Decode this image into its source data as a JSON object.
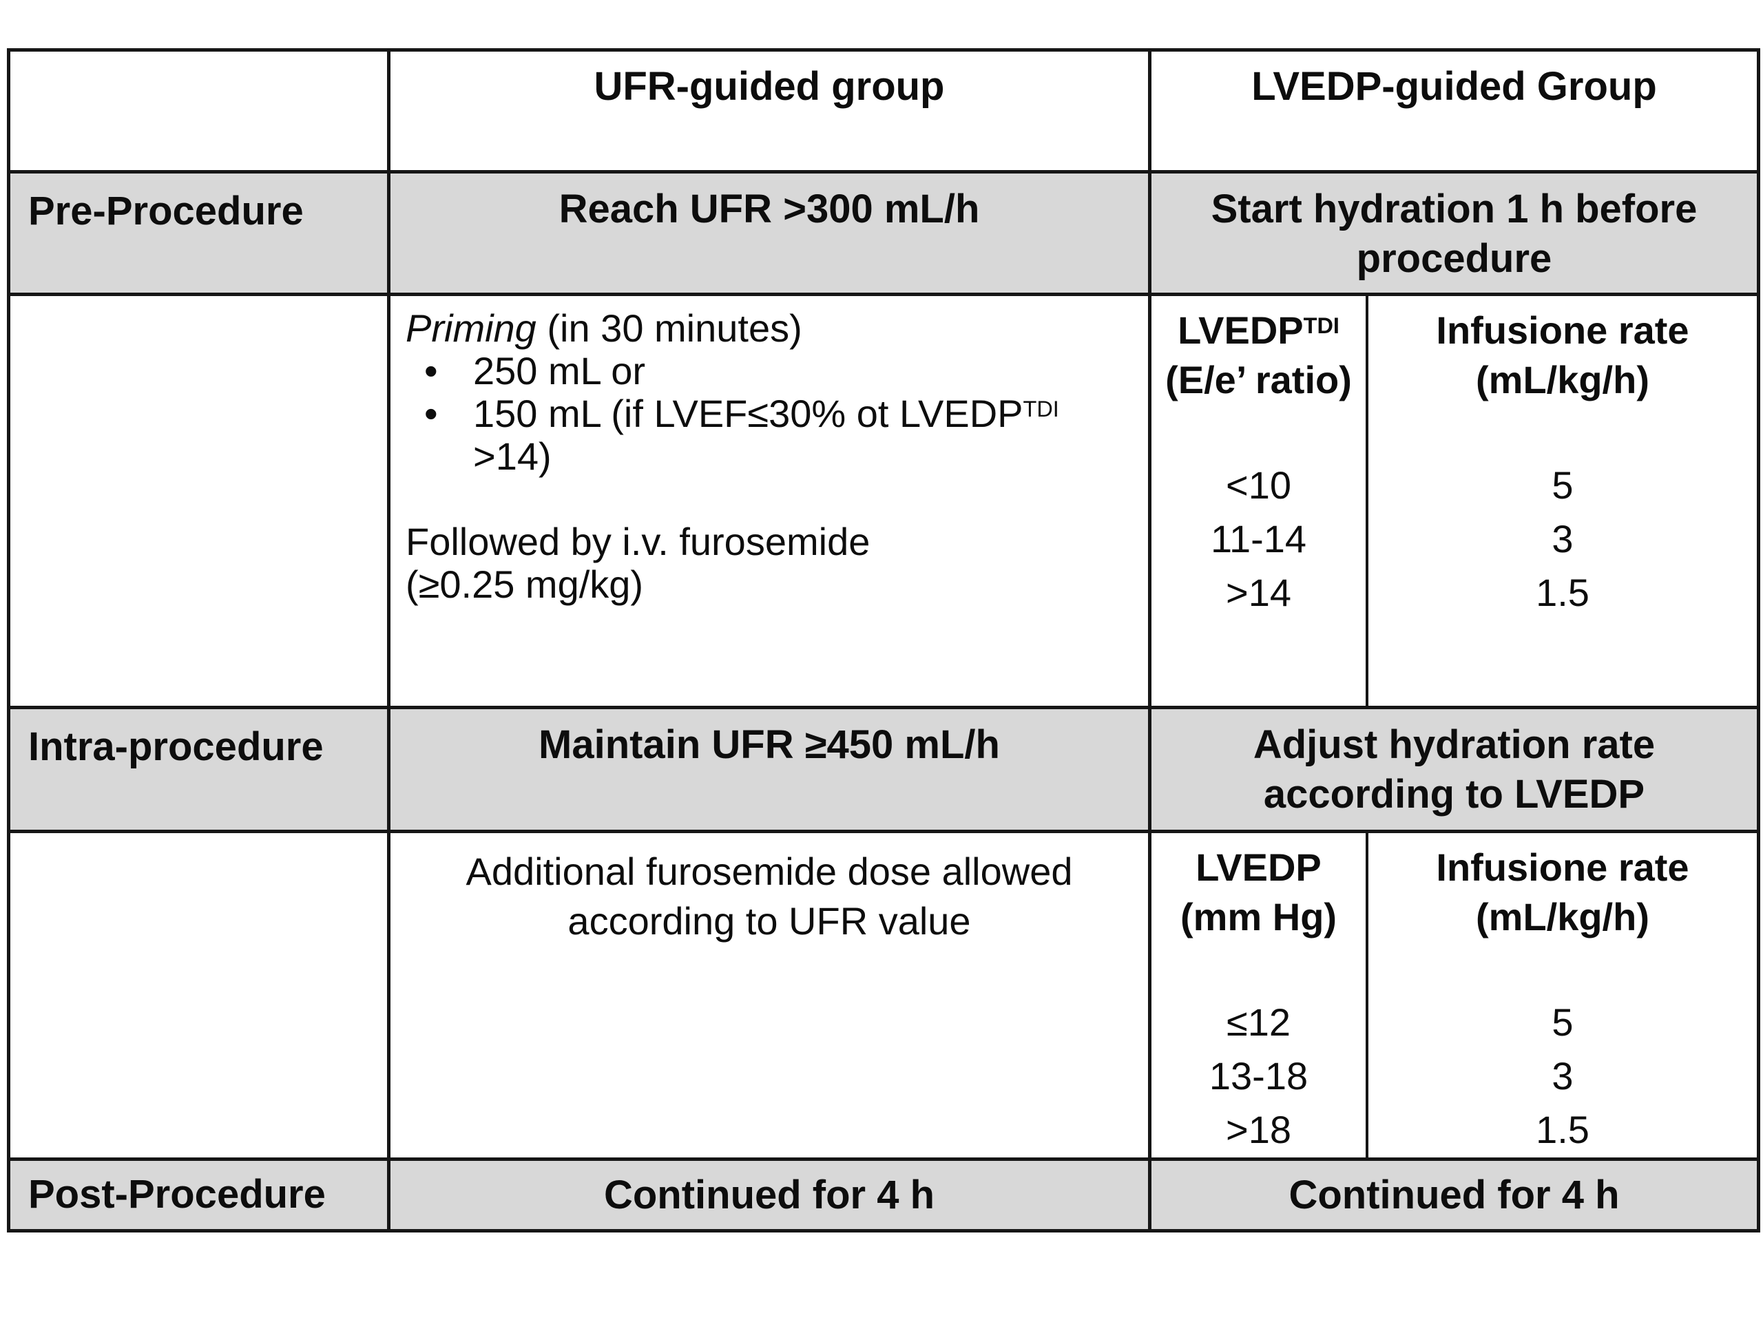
{
  "table": {
    "header": {
      "corner": "",
      "ufr": "UFR-guided group",
      "lvedp": "LVEDP-guided Group"
    },
    "pre": {
      "label": "Pre-Procedure",
      "ufr": "Reach UFR >300 mL/h",
      "lvedp": "Start hydration 1 h before procedure"
    },
    "pre_detail": {
      "priming_title": "Priming",
      "priming_note": " (in 30 minutes)",
      "bullet_char": "•",
      "bullet1": "250 mL or",
      "bullet2_text": "150 mL (if LVEF≤30% ot LVEDP",
      "bullet2_sup": "TDI",
      "bullet2_cont": ">14)",
      "followup": "Followed by i.v. furosemide (≥0.25 mg/kg)",
      "sub": {
        "col1_line1": "LVEDP",
        "col1_sup": "TDI",
        "col1_line2": "(E/e’ ratio)",
        "col2_line1": "Infusione rate",
        "col2_line2": "(mL/kg/h)",
        "rows": [
          {
            "range": "<10",
            "rate": "5"
          },
          {
            "range": "11-14",
            "rate": "3"
          },
          {
            "range": ">14",
            "rate": "1.5"
          }
        ]
      }
    },
    "intra": {
      "label": "Intra-procedure",
      "ufr": "Maintain UFR ≥450 mL/h",
      "lvedp": "Adjust hydration rate according to LVEDP"
    },
    "intra_detail": {
      "ufr": "Additional furosemide dose allowed according to UFR value",
      "sub": {
        "col1_line1": "LVEDP",
        "col1_line2": "(mm Hg)",
        "col2_line1": "Infusione rate",
        "col2_line2": "(mL/kg/h)",
        "rows": [
          {
            "range": "≤12",
            "rate": "5"
          },
          {
            "range": "13-18",
            "rate": "3"
          },
          {
            "range": ">18",
            "rate": "1.5"
          }
        ]
      }
    },
    "post": {
      "label": "Post-Procedure",
      "ufr": "Continued for 4 h",
      "lvedp": "Continued for 4 h"
    },
    "colors": {
      "row_shading": "#d8d8d8",
      "border": "#161616",
      "text": "#0d0d0d"
    }
  }
}
